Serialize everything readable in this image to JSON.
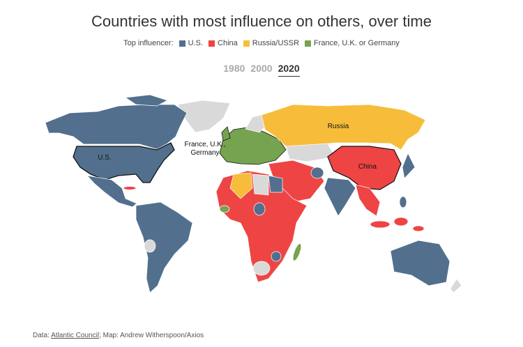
{
  "header": {
    "title": "Countries with most influence on others, over time"
  },
  "legend": {
    "label": "Top influencer:",
    "items": [
      {
        "name": "U.S.",
        "color": "#52708d"
      },
      {
        "name": "China",
        "color": "#ef4444"
      },
      {
        "name": "Russia/USSR",
        "color": "#f7bd3a"
      },
      {
        "name": "France, U.K. or Germany",
        "color": "#76a34f"
      }
    ]
  },
  "tabs": [
    {
      "label": "1980",
      "active": false
    },
    {
      "label": "2000",
      "active": false
    },
    {
      "label": "2020",
      "active": true
    }
  ],
  "map": {
    "labels": {
      "us": "U.S.",
      "russia": "Russia",
      "china": "China",
      "europe": [
        "France, U.K.,",
        "Germany"
      ]
    }
  },
  "footer": {
    "prefix": "Data: ",
    "link": "Atlantic Council",
    "suffix": "; Map: Andrew Witherspoon/Axios"
  }
}
